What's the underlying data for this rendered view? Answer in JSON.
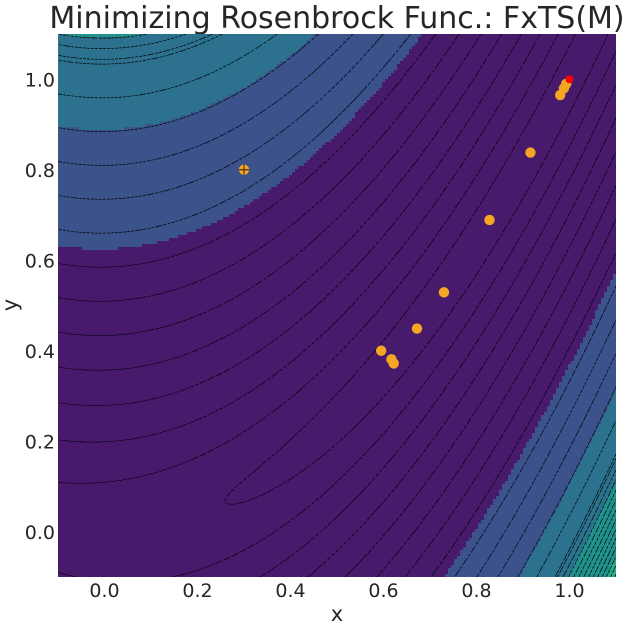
{
  "chart_data": {
    "type": "contour",
    "title": "Minimizing Rosenbrock Func.: FxTS(M)",
    "xlabel": "x",
    "ylabel": "y",
    "xlim": [
      -0.1,
      1.1
    ],
    "ylim": [
      -0.1,
      1.1
    ],
    "xticks": [
      "0.0",
      "0.2",
      "0.4",
      "0.6",
      "0.8",
      "1.0"
    ],
    "yticks": [
      "0.0",
      "0.2",
      "0.4",
      "0.6",
      "0.8",
      "1.0"
    ],
    "function": "rosenbrock",
    "colormap": "viridis",
    "contour_line_style": "dashed",
    "contour_line_color": "#000000",
    "grid": false,
    "start_point": {
      "x": 0.3,
      "y": 0.8
    },
    "iterates": {
      "color": "#f5a623",
      "points": [
        {
          "x": 0.3,
          "y": 0.8
        },
        {
          "x": 0.595,
          "y": 0.4
        },
        {
          "x": 0.617,
          "y": 0.381
        },
        {
          "x": 0.622,
          "y": 0.372
        },
        {
          "x": 0.672,
          "y": 0.449
        },
        {
          "x": 0.73,
          "y": 0.529
        },
        {
          "x": 0.828,
          "y": 0.689
        },
        {
          "x": 0.916,
          "y": 0.838
        },
        {
          "x": 0.98,
          "y": 0.965
        },
        {
          "x": 0.988,
          "y": 0.98
        },
        {
          "x": 0.993,
          "y": 0.99
        }
      ]
    },
    "minimum": {
      "x": 1.0,
      "y": 1.0,
      "color": "#ff0000"
    }
  }
}
